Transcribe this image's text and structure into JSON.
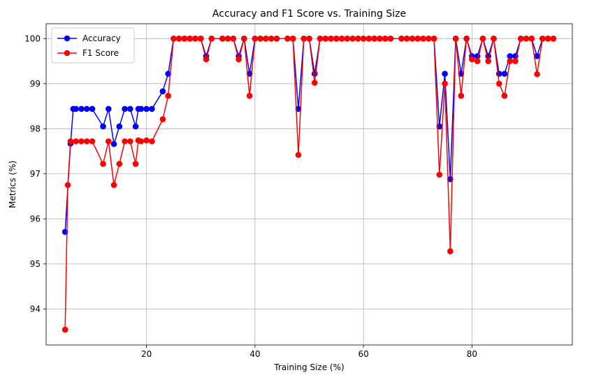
{
  "chart_data": {
    "type": "line",
    "title": "Accuracy and F1 Score vs. Training Size",
    "xlabel": "Training Size (%)",
    "ylabel": "Metrics (%)",
    "xlim": [
      1.5,
      98.5
    ],
    "ylim": [
      93.2,
      100.33
    ],
    "xticks": [
      20,
      40,
      60,
      80
    ],
    "yticks": [
      94,
      95,
      96,
      97,
      98,
      99,
      100
    ],
    "grid": true,
    "legend_position": "top-left",
    "series": [
      {
        "name": "Accuracy",
        "color": "#0000ff",
        "points": [
          [
            5,
            95.71
          ],
          [
            6,
            97.67
          ],
          [
            6.5,
            98.44
          ],
          [
            7,
            98.44
          ],
          [
            8,
            98.44
          ],
          [
            9,
            98.44
          ],
          [
            10,
            98.44
          ],
          [
            12,
            98.05
          ],
          [
            13,
            98.44
          ],
          [
            14,
            97.66
          ],
          [
            15,
            98.05
          ],
          [
            16,
            98.44
          ],
          [
            17,
            98.44
          ],
          [
            18,
            98.05
          ],
          [
            18.5,
            98.44
          ],
          [
            19,
            98.44
          ],
          [
            20,
            98.44
          ],
          [
            21,
            98.44
          ],
          [
            23,
            98.83
          ],
          [
            24,
            99.22
          ],
          [
            25,
            100
          ],
          [
            26,
            100
          ],
          [
            27,
            100
          ],
          [
            28,
            100
          ],
          [
            29,
            100
          ],
          [
            30,
            100
          ],
          [
            31,
            99.61
          ],
          [
            32,
            100
          ],
          [
            34,
            100
          ],
          [
            35,
            100
          ],
          [
            36,
            100
          ],
          [
            37,
            99.61
          ],
          [
            38,
            100
          ],
          [
            39,
            99.22
          ],
          [
            40,
            100
          ],
          [
            41,
            100
          ],
          [
            42,
            100
          ],
          [
            43,
            100
          ],
          [
            44,
            100
          ],
          [
            46,
            100
          ],
          [
            47,
            100
          ],
          [
            48,
            98.44
          ],
          [
            49,
            100
          ],
          [
            50,
            100
          ],
          [
            51,
            99.22
          ],
          [
            52,
            100
          ],
          [
            53,
            100
          ],
          [
            54,
            100
          ],
          [
            55,
            100
          ],
          [
            56,
            100
          ],
          [
            57,
            100
          ],
          [
            58,
            100
          ],
          [
            59,
            100
          ],
          [
            60,
            100
          ],
          [
            61,
            100
          ],
          [
            62,
            100
          ],
          [
            63,
            100
          ],
          [
            64,
            100
          ],
          [
            65,
            100
          ],
          [
            67,
            100
          ],
          [
            68,
            100
          ],
          [
            69,
            100
          ],
          [
            70,
            100
          ],
          [
            71,
            100
          ],
          [
            72,
            100
          ],
          [
            73,
            100
          ],
          [
            74,
            98.05
          ],
          [
            75,
            99.22
          ],
          [
            76,
            96.88
          ],
          [
            77,
            100
          ],
          [
            78,
            99.22
          ],
          [
            79,
            100
          ],
          [
            80,
            99.61
          ],
          [
            81,
            99.61
          ],
          [
            82,
            100
          ],
          [
            83,
            99.61
          ],
          [
            84,
            100
          ],
          [
            85,
            99.22
          ],
          [
            86,
            99.22
          ],
          [
            87,
            99.61
          ],
          [
            88,
            99.61
          ],
          [
            89,
            100
          ],
          [
            90,
            100
          ],
          [
            91,
            100
          ],
          [
            92,
            99.61
          ],
          [
            93,
            100
          ],
          [
            94,
            100
          ],
          [
            95,
            100
          ]
        ]
      },
      {
        "name": "F1 Score",
        "color": "#ff0000",
        "points": [
          [
            5,
            93.54
          ],
          [
            5.5,
            96.75
          ],
          [
            6,
            97.72
          ],
          [
            7,
            97.72
          ],
          [
            8,
            97.72
          ],
          [
            9,
            97.72
          ],
          [
            10,
            97.72
          ],
          [
            12,
            97.22
          ],
          [
            13,
            97.72
          ],
          [
            14,
            96.75
          ],
          [
            15,
            97.22
          ],
          [
            16,
            97.72
          ],
          [
            17,
            97.72
          ],
          [
            18,
            97.22
          ],
          [
            18.5,
            97.74
          ],
          [
            19,
            97.72
          ],
          [
            20,
            97.74
          ],
          [
            21,
            97.72
          ],
          [
            23,
            98.21
          ],
          [
            24,
            98.73
          ],
          [
            25,
            100
          ],
          [
            26,
            100
          ],
          [
            27,
            100
          ],
          [
            28,
            100
          ],
          [
            29,
            100
          ],
          [
            30,
            100
          ],
          [
            31,
            99.54
          ],
          [
            32,
            100
          ],
          [
            34,
            100
          ],
          [
            35,
            100
          ],
          [
            36,
            100
          ],
          [
            37,
            99.54
          ],
          [
            38,
            100
          ],
          [
            39,
            98.73
          ],
          [
            40,
            100
          ],
          [
            41,
            100
          ],
          [
            42,
            100
          ],
          [
            43,
            100
          ],
          [
            44,
            100
          ],
          [
            46,
            100
          ],
          [
            47,
            100
          ],
          [
            48,
            97.42
          ],
          [
            49,
            100
          ],
          [
            50,
            100
          ],
          [
            51,
            99.02
          ],
          [
            52,
            100
          ],
          [
            53,
            100
          ],
          [
            54,
            100
          ],
          [
            55,
            100
          ],
          [
            56,
            100
          ],
          [
            57,
            100
          ],
          [
            58,
            100
          ],
          [
            59,
            100
          ],
          [
            60,
            100
          ],
          [
            61,
            100
          ],
          [
            62,
            100
          ],
          [
            63,
            100
          ],
          [
            64,
            100
          ],
          [
            65,
            100
          ],
          [
            67,
            100
          ],
          [
            68,
            100
          ],
          [
            69,
            100
          ],
          [
            70,
            100
          ],
          [
            71,
            100
          ],
          [
            72,
            100
          ],
          [
            73,
            100
          ],
          [
            74,
            96.98
          ],
          [
            75,
            99.0
          ],
          [
            76,
            95.28
          ],
          [
            77,
            100
          ],
          [
            78,
            98.73
          ],
          [
            79,
            100
          ],
          [
            80,
            99.54
          ],
          [
            81,
            99.5
          ],
          [
            82,
            100
          ],
          [
            83,
            99.5
          ],
          [
            84,
            100
          ],
          [
            85,
            99.0
          ],
          [
            86,
            98.73
          ],
          [
            87,
            99.5
          ],
          [
            88,
            99.5
          ],
          [
            89,
            100
          ],
          [
            90,
            100
          ],
          [
            91,
            100
          ],
          [
            92,
            99.21
          ],
          [
            93,
            100
          ],
          [
            94,
            100
          ],
          [
            95,
            100
          ]
        ]
      }
    ]
  }
}
